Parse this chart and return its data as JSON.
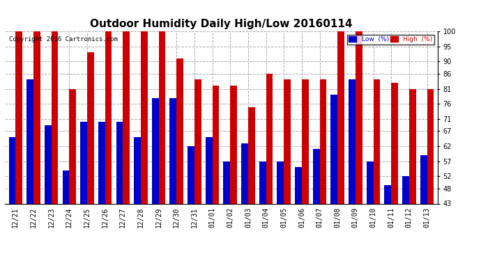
{
  "title": "Outdoor Humidity Daily High/Low 20160114",
  "copyright": "Copyright 2016 Cartronics.com",
  "dates": [
    "12/21",
    "12/22",
    "12/23",
    "12/24",
    "12/25",
    "12/26",
    "12/27",
    "12/28",
    "12/29",
    "12/30",
    "12/31",
    "01/01",
    "01/02",
    "01/03",
    "01/04",
    "01/05",
    "01/06",
    "01/07",
    "01/08",
    "01/09",
    "01/10",
    "01/11",
    "01/12",
    "01/13"
  ],
  "high": [
    100,
    100,
    100,
    81,
    93,
    100,
    100,
    100,
    100,
    91,
    84,
    82,
    82,
    75,
    86,
    84,
    84,
    84,
    100,
    100,
    84,
    83,
    81,
    81
  ],
  "low": [
    65,
    84,
    69,
    54,
    70,
    70,
    70,
    65,
    78,
    78,
    62,
    65,
    57,
    63,
    57,
    57,
    55,
    61,
    79,
    84,
    57,
    49,
    52,
    59
  ],
  "ylim_min": 43,
  "ylim_max": 100,
  "yticks": [
    43,
    48,
    52,
    57,
    62,
    67,
    71,
    76,
    81,
    86,
    90,
    95,
    100
  ],
  "bar_width": 0.38,
  "low_color": "#0000cc",
  "high_color": "#cc0000",
  "bg_color": "#ffffff",
  "grid_color": "#aaaaaa",
  "title_fontsize": 11,
  "tick_fontsize": 7,
  "legend_low_label": "Low  (%)",
  "legend_high_label": "High  (%)"
}
